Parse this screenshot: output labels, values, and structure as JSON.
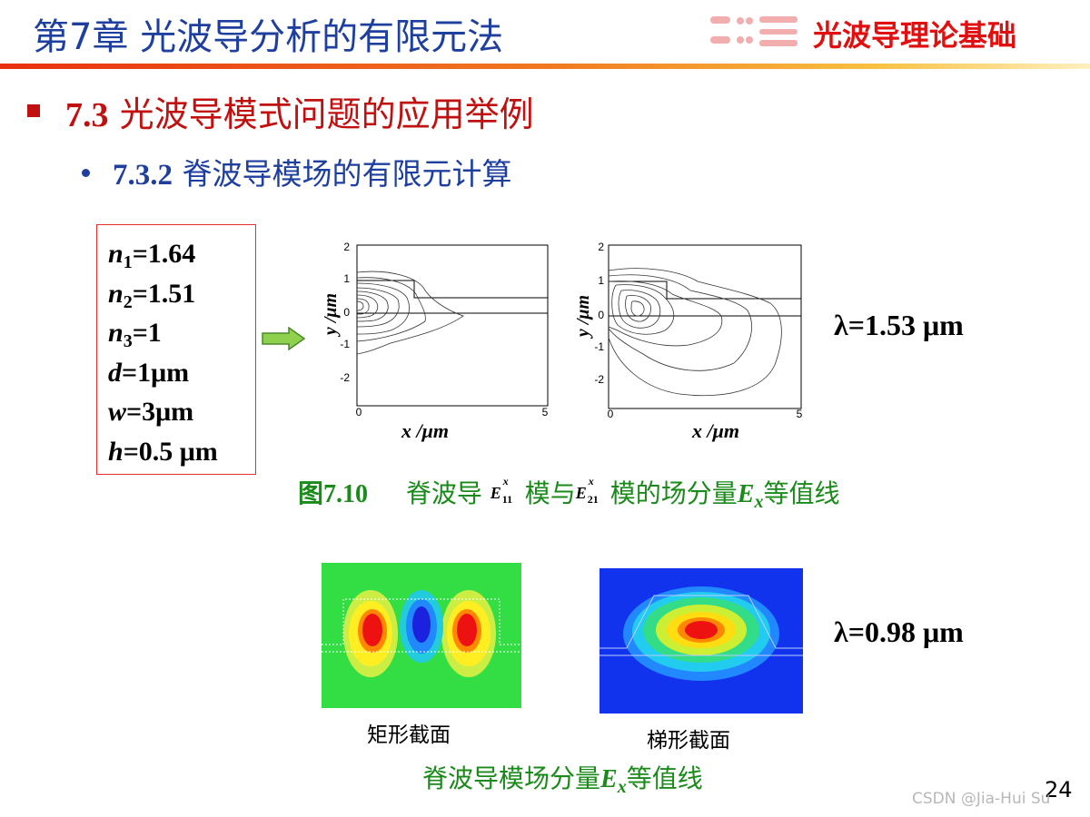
{
  "header": {
    "chapter_title": "第7章 光波导分析的有限元法",
    "course_title": "光波导理论基础"
  },
  "section": {
    "number": "7.3",
    "title": "光波导模式问题的应用举例"
  },
  "subsection": {
    "number": "7.3.2",
    "title": "脊波导模场的有限元计算"
  },
  "parameters": [
    {
      "symbol": "n",
      "subscript": "1",
      "value": "=1.64"
    },
    {
      "symbol": "n",
      "subscript": "2",
      "value": "=1.51"
    },
    {
      "symbol": "n",
      "subscript": "3",
      "value": "=1"
    },
    {
      "symbol": "d",
      "subscript": "",
      "value": "=1μm"
    },
    {
      "symbol": "w",
      "subscript": "",
      "value": "=3μm"
    },
    {
      "symbol": "h",
      "subscript": "",
      "value": "=0.5 μm"
    }
  ],
  "contour_plots": [
    {
      "name": "E11x-mode",
      "x_label": "x /μm",
      "y_label": "y /μm",
      "x_ticks": [
        "0",
        "5"
      ],
      "y_ticks": [
        "2",
        "1",
        "0",
        "-1",
        "-2"
      ]
    },
    {
      "name": "E21x-mode",
      "x_label": "x /μm",
      "y_label": "y /μm",
      "x_ticks": [
        "0",
        "5"
      ],
      "y_ticks": [
        "2",
        "1",
        "0",
        "-1",
        "-2"
      ]
    }
  ],
  "lambda_1": "λ=1.53 μm",
  "lambda_2": "λ=0.98 μm",
  "figure_caption": {
    "number": "图7.10",
    "text_a": "脊波导",
    "mode_1": {
      "E": "E",
      "sup": "x",
      "sub": "11"
    },
    "text_b": "模与",
    "mode_2": {
      "E": "E",
      "sup": "x",
      "sub": "21"
    },
    "text_c": "模的场分量",
    "field_symbol": "E",
    "field_sub": "x",
    "text_d": "等值线"
  },
  "field_images": {
    "rect_label": "矩形截面",
    "trap_label": "梯形截面"
  },
  "bottom_caption": {
    "text_a": "脊波导模场分量",
    "field_symbol": "E",
    "field_sub": "x",
    "text_b": "等值线"
  },
  "page_number": "24",
  "watermark": "CSDN @Jia-Hui Su",
  "colors": {
    "header_blue": "#1f3f9f",
    "section_red": "#c01010",
    "caption_green": "#1a8a1a"
  }
}
